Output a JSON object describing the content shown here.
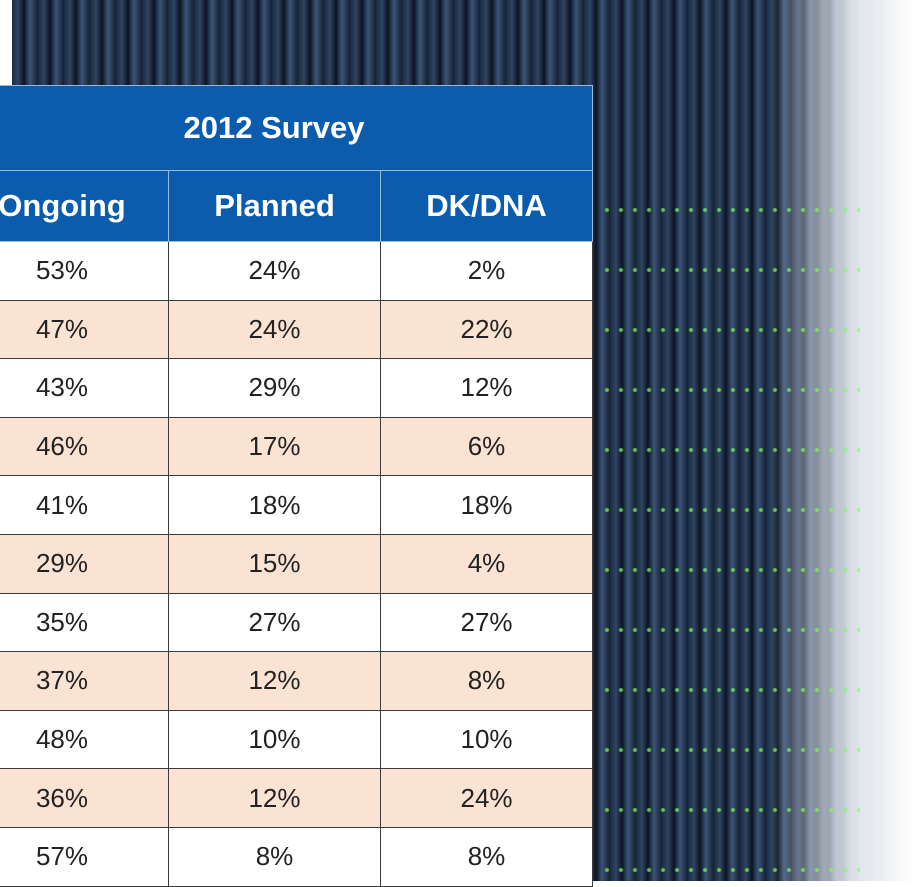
{
  "table": {
    "title": "2012 Survey",
    "columns": [
      "Ongoing",
      "Planned",
      "DK/DNA"
    ],
    "rows": [
      [
        "53%",
        "24%",
        "2%"
      ],
      [
        "47%",
        "24%",
        "22%"
      ],
      [
        "43%",
        "29%",
        "12%"
      ],
      [
        "46%",
        "17%",
        "6%"
      ],
      [
        "41%",
        "18%",
        "18%"
      ],
      [
        "29%",
        "15%",
        "4%"
      ],
      [
        "35%",
        "27%",
        "27%"
      ],
      [
        "37%",
        "12%",
        "8%"
      ],
      [
        "48%",
        "10%",
        "10%"
      ],
      [
        "36%",
        "12%",
        "24%"
      ],
      [
        "57%",
        "8%",
        "8%"
      ]
    ]
  }
}
